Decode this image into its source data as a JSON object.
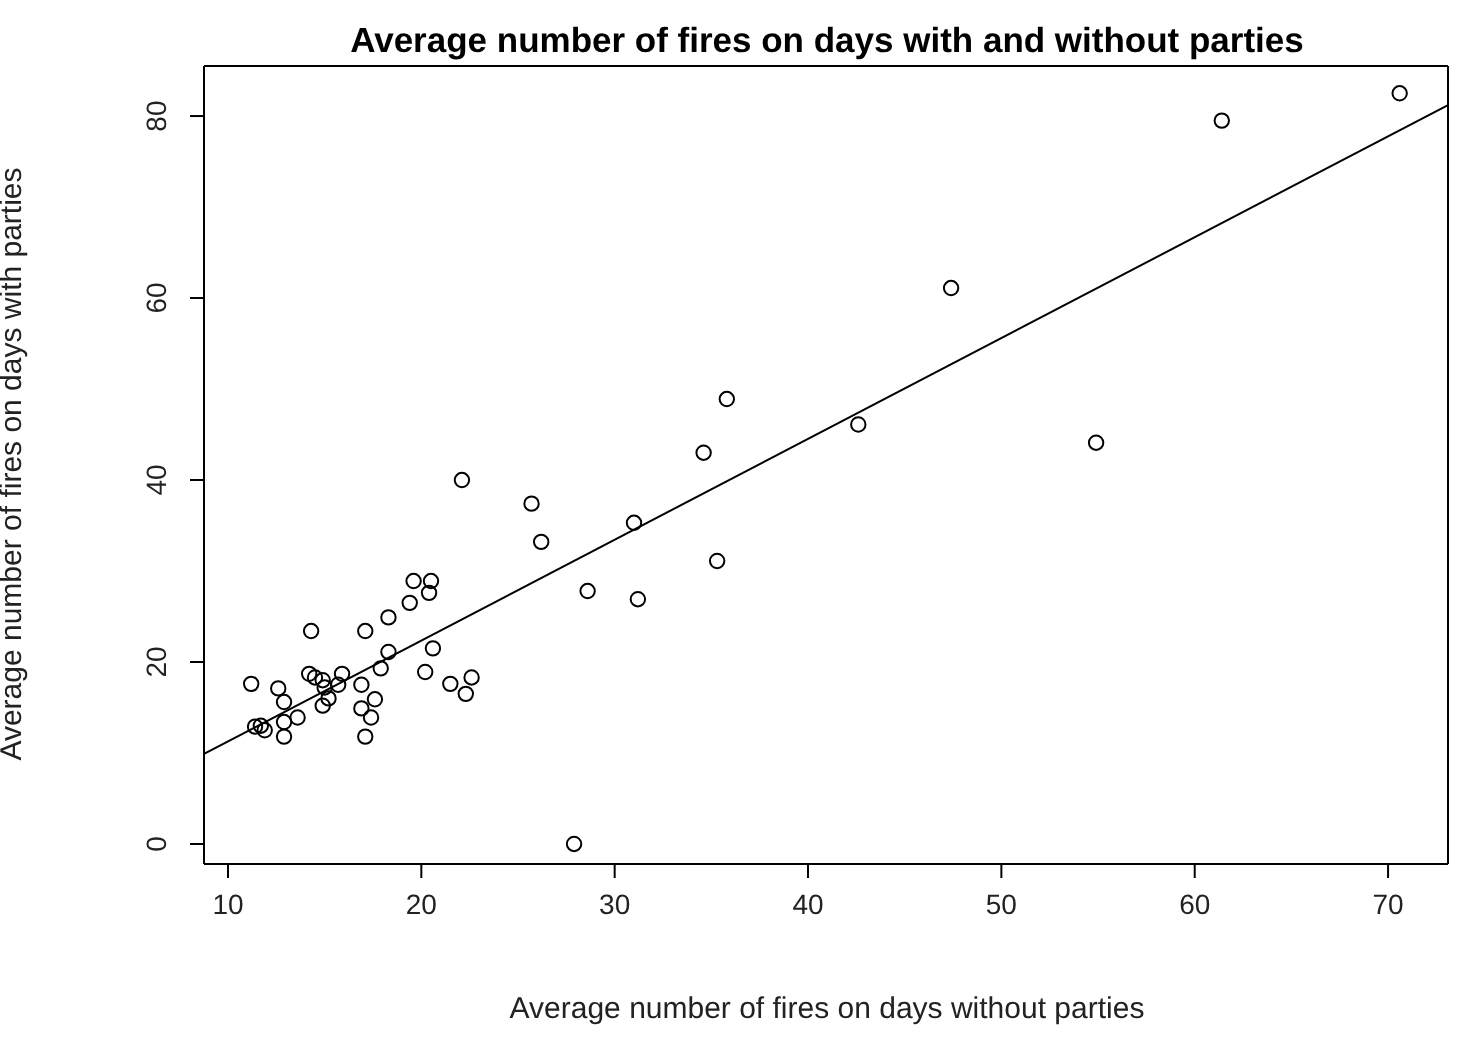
{
  "chart_data": {
    "type": "scatter",
    "title": "Average number of fires on days with and without parties",
    "xlabel": "Average number of fires on days without parties",
    "ylabel": "Average number of fires on days with parties",
    "xlim": [
      8.76,
      73.1
    ],
    "ylim": [
      -2.2,
      85.5
    ],
    "xticks": [
      10,
      20,
      30,
      40,
      50,
      60,
      70
    ],
    "yticks": [
      0,
      20,
      40,
      60,
      80
    ],
    "series": [
      {
        "color": "#000000",
        "marker": "circle",
        "x": [
          11.2,
          11.4,
          11.7,
          11.9,
          12.6,
          12.9,
          12.9,
          12.9,
          13.6,
          14.3,
          14.2,
          14.5,
          14.9,
          15.0,
          15.2,
          14.9,
          15.9,
          15.7,
          16.9,
          16.9,
          17.1,
          17.1,
          17.6,
          17.4,
          17.9,
          18.3,
          18.3,
          19.4,
          19.6,
          20.5,
          20.4,
          20.2,
          20.6,
          21.5,
          22.3,
          22.6,
          22.1,
          25.7,
          26.2,
          28.6,
          31.0,
          31.2,
          34.6,
          35.3,
          35.8,
          42.6,
          47.4,
          54.9,
          61.4,
          70.6,
          27.9
        ],
        "values": [
          17.6,
          12.9,
          13.0,
          12.5,
          17.1,
          15.6,
          13.4,
          11.8,
          13.9,
          23.4,
          18.7,
          18.3,
          18.0,
          17.2,
          16.0,
          15.2,
          18.7,
          17.5,
          17.5,
          14.9,
          11.8,
          23.4,
          15.9,
          13.9,
          19.3,
          21.1,
          24.9,
          26.5,
          28.9,
          28.9,
          27.6,
          18.9,
          21.5,
          17.6,
          16.5,
          18.3,
          40.0,
          37.4,
          33.2,
          27.8,
          35.3,
          26.9,
          43.0,
          31.1,
          48.9,
          46.1,
          61.1,
          44.1,
          79.5,
          82.5,
          0
        ]
      },
      {
        "type": "line",
        "color": "#000000",
        "marker": "none",
        "line_style": "solid",
        "x": [
          8.76,
          73.1
        ],
        "values": [
          9.9,
          81.2
        ]
      }
    ]
  }
}
